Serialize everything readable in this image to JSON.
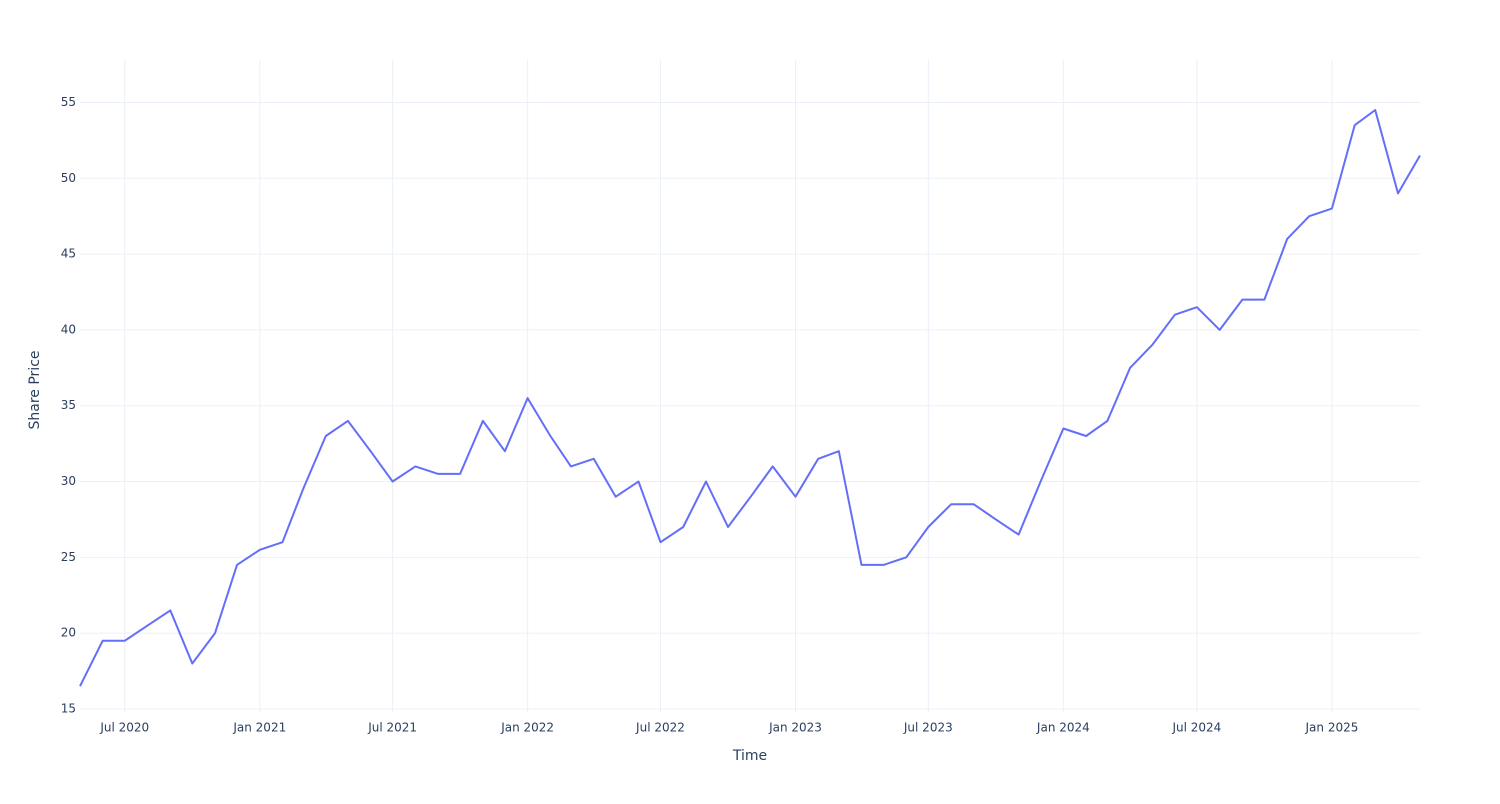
{
  "chart_data": {
    "type": "line",
    "x_label": "Time",
    "y_label": "Share Price",
    "x": [
      "2020-05",
      "2020-06",
      "2020-07",
      "2020-08",
      "2020-09",
      "2020-10",
      "2020-11",
      "2020-12",
      "2021-01",
      "2021-02",
      "2021-03",
      "2021-04",
      "2021-05",
      "2021-06",
      "2021-07",
      "2021-08",
      "2021-09",
      "2021-10",
      "2021-11",
      "2021-12",
      "2022-01",
      "2022-02",
      "2022-03",
      "2022-04",
      "2022-05",
      "2022-06",
      "2022-07",
      "2022-08",
      "2022-09",
      "2022-10",
      "2022-11",
      "2022-12",
      "2023-01",
      "2023-02",
      "2023-03",
      "2023-04",
      "2023-05",
      "2023-06",
      "2023-07",
      "2023-08",
      "2023-09",
      "2023-10",
      "2023-11",
      "2023-12",
      "2024-01",
      "2024-02",
      "2024-03",
      "2024-04",
      "2024-05",
      "2024-06",
      "2024-07",
      "2024-08",
      "2024-09",
      "2024-10",
      "2024-11",
      "2024-12",
      "2025-01",
      "2025-02",
      "2025-03",
      "2025-04",
      "2025-05"
    ],
    "series": [
      {
        "name": "Share Price",
        "color": "#636efa",
        "values": [
          16.5,
          19.5,
          19.5,
          20.5,
          21.5,
          18,
          20,
          24.5,
          25.5,
          26,
          29.5,
          33,
          34,
          32,
          30,
          31,
          30.5,
          30.5,
          34,
          32,
          35.5,
          33,
          31,
          31.5,
          29,
          30,
          26,
          27,
          30,
          27,
          29,
          31,
          29,
          31.5,
          32,
          24.5,
          24.5,
          25,
          27,
          28.5,
          28.5,
          27.5,
          26.5,
          30,
          33.5,
          33,
          34,
          37.5,
          39,
          41,
          41.5,
          40,
          42,
          42,
          46,
          47.5,
          48,
          53.5,
          54.5,
          49,
          51.5
        ]
      }
    ],
    "xlim": [
      "2020-05",
      "2025-05"
    ],
    "xticks": [
      {
        "value": "2020-07",
        "label": "Jul 2020"
      },
      {
        "value": "2021-01",
        "label": "Jan 2021"
      },
      {
        "value": "2021-07",
        "label": "Jul 2021"
      },
      {
        "value": "2022-01",
        "label": "Jan 2022"
      },
      {
        "value": "2022-07",
        "label": "Jul 2022"
      },
      {
        "value": "2023-01",
        "label": "Jan 2023"
      },
      {
        "value": "2023-07",
        "label": "Jul 2023"
      },
      {
        "value": "2024-01",
        "label": "Jan 2024"
      },
      {
        "value": "2024-07",
        "label": "Jul 2024"
      },
      {
        "value": "2025-01",
        "label": "Jan 2025"
      }
    ],
    "ylim": [
      14.8,
      57.8
    ],
    "yticks": [
      15,
      20,
      25,
      30,
      35,
      40,
      45,
      50,
      55
    ],
    "grid": true
  }
}
